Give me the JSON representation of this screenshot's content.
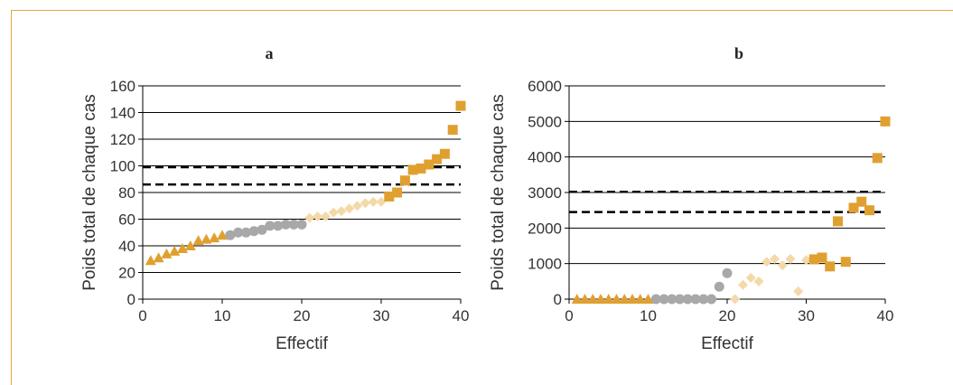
{
  "colors": {
    "triangle": "#e0a030",
    "circle": "#a8a8a8",
    "diamond": "#f4d9a8",
    "square": "#e0a030",
    "grid": "#000000",
    "threshold": "#000000",
    "border": "#e8a640"
  },
  "chart_data": [
    {
      "type": "scatter",
      "title": "a",
      "xlabel": "Effectif",
      "ylabel": "Poids total de chaque cas",
      "xlim": [
        0,
        40
      ],
      "ylim": [
        0,
        160
      ],
      "xticks": [
        "0",
        "10",
        "20",
        "30",
        "40"
      ],
      "yticks": [
        "0",
        "20",
        "40",
        "60",
        "80",
        "100",
        "120",
        "140",
        "160"
      ],
      "grid": "horizontal",
      "thresholds": [
        99,
        86
      ],
      "series": [
        {
          "marker": "triangle",
          "points": [
            [
              1,
              29
            ],
            [
              2,
              31
            ],
            [
              3,
              34
            ],
            [
              4,
              36
            ],
            [
              5,
              38
            ],
            [
              6,
              40
            ],
            [
              7,
              44
            ],
            [
              8,
              45
            ],
            [
              9,
              46
            ],
            [
              10,
              48
            ]
          ]
        },
        {
          "marker": "circle",
          "points": [
            [
              11,
              48
            ],
            [
              12,
              50
            ],
            [
              13,
              50
            ],
            [
              14,
              51
            ],
            [
              15,
              52
            ],
            [
              16,
              55
            ],
            [
              17,
              55
            ],
            [
              18,
              56
            ],
            [
              19,
              56
            ],
            [
              20,
              56
            ]
          ]
        },
        {
          "marker": "diamond",
          "points": [
            [
              21,
              61
            ],
            [
              22,
              62
            ],
            [
              23,
              62
            ],
            [
              24,
              65
            ],
            [
              25,
              66
            ],
            [
              26,
              68
            ],
            [
              27,
              70
            ],
            [
              28,
              72
            ],
            [
              29,
              73
            ],
            [
              30,
              73
            ]
          ]
        },
        {
          "marker": "square",
          "points": [
            [
              31,
              77
            ],
            [
              32,
              80
            ],
            [
              33,
              89
            ],
            [
              34,
              97
            ],
            [
              35,
              98
            ],
            [
              36,
              101
            ],
            [
              37,
              105
            ],
            [
              38,
              109
            ],
            [
              39,
              127
            ],
            [
              40,
              145
            ]
          ]
        }
      ]
    },
    {
      "type": "scatter",
      "title": "b",
      "xlabel": "Effectif",
      "ylabel": "Poids total de chaque cas",
      "xlim": [
        0,
        40
      ],
      "ylim": [
        0,
        6000
      ],
      "xticks": [
        "0",
        "10",
        "20",
        "30",
        "40"
      ],
      "yticks": [
        "0",
        "1000",
        "2000",
        "3000",
        "4000",
        "5000",
        "6000"
      ],
      "grid": "horizontal",
      "thresholds": [
        3020,
        2450
      ],
      "series": [
        {
          "marker": "triangle",
          "points": [
            [
              1,
              0
            ],
            [
              2,
              0
            ],
            [
              3,
              0
            ],
            [
              4,
              0
            ],
            [
              5,
              0
            ],
            [
              6,
              0
            ],
            [
              7,
              0
            ],
            [
              8,
              0
            ],
            [
              9,
              0
            ],
            [
              10,
              0
            ]
          ]
        },
        {
          "marker": "circle",
          "points": [
            [
              11,
              0
            ],
            [
              12,
              0
            ],
            [
              13,
              0
            ],
            [
              14,
              0
            ],
            [
              15,
              0
            ],
            [
              16,
              0
            ],
            [
              17,
              0
            ],
            [
              18,
              0
            ],
            [
              19,
              350
            ],
            [
              20,
              730
            ]
          ]
        },
        {
          "marker": "diamond",
          "points": [
            [
              21,
              0
            ],
            [
              22,
              400
            ],
            [
              23,
              600
            ],
            [
              24,
              500
            ],
            [
              25,
              1050
            ],
            [
              26,
              1130
            ],
            [
              27,
              950
            ],
            [
              28,
              1130
            ],
            [
              29,
              220
            ],
            [
              30,
              1100
            ]
          ]
        },
        {
          "marker": "square",
          "points": [
            [
              31,
              1120
            ],
            [
              32,
              1170
            ],
            [
              33,
              920
            ],
            [
              34,
              2190
            ],
            [
              35,
              1050
            ],
            [
              36,
              2570
            ],
            [
              37,
              2740
            ],
            [
              38,
              2500
            ],
            [
              39,
              3970
            ],
            [
              40,
              5000
            ]
          ]
        }
      ]
    }
  ]
}
